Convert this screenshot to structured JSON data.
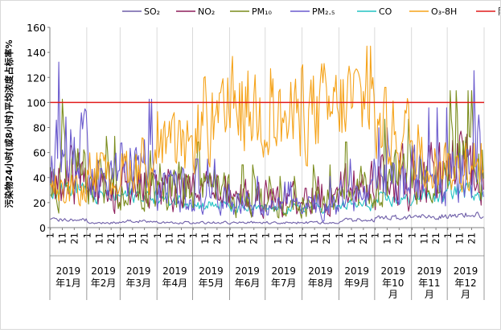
{
  "chart_data": {
    "type": "line",
    "ylabel": "污染物24小时(或8小时)平均浓度占标率%",
    "ylim": [
      0,
      160
    ],
    "yticks": [
      0,
      20,
      40,
      60,
      80,
      100,
      120,
      140,
      160
    ],
    "grid": "vertical lines at month boundaries",
    "legend_position": "top",
    "threshold": {
      "name": "限值",
      "value": 100,
      "color": "#e11b1b"
    },
    "series": [
      {
        "name": "SO₂",
        "color": "#6e5ea8"
      },
      {
        "name": "NO₂",
        "color": "#8e1f5c"
      },
      {
        "name": "PM₁₀",
        "color": "#7a8c1c"
      },
      {
        "name": "PM₂.₅",
        "color": "#6a5acd"
      },
      {
        "name": "CO",
        "color": "#22c3c3"
      },
      {
        "name": "O₃-8H",
        "color": "#f5a31a"
      }
    ],
    "day_tick_labels": [
      "1",
      "11",
      "21"
    ],
    "months": [
      {
        "year": "2019",
        "month": "年1月"
      },
      {
        "year": "2019",
        "month": "年2月"
      },
      {
        "year": "2019",
        "month": "年3月"
      },
      {
        "year": "2019",
        "month": "年4月"
      },
      {
        "year": "2019",
        "month": "年5月"
      },
      {
        "year": "2019",
        "month": "年6月"
      },
      {
        "year": "2019",
        "month": "年7月"
      },
      {
        "year": "2019",
        "month": "年8月"
      },
      {
        "year": "2019",
        "month": "年9月"
      },
      {
        "year": "2019",
        "month": "年10月"
      },
      {
        "year": "2019",
        "month": "年11月"
      },
      {
        "year": "2019",
        "month": "年12月"
      }
    ],
    "month_days": [
      31,
      28,
      31,
      30,
      31,
      30,
      31,
      31,
      30,
      31,
      30,
      31
    ],
    "monthly_level": {
      "SO₂": [
        6,
        4,
        5,
        4,
        4,
        4,
        4,
        4,
        6,
        8,
        9,
        10
      ],
      "NO₂": [
        42,
        28,
        35,
        30,
        28,
        25,
        24,
        26,
        32,
        40,
        42,
        48
      ],
      "PM₁₀": [
        45,
        32,
        40,
        35,
        30,
        22,
        18,
        22,
        30,
        38,
        40,
        48
      ],
      "PM₂.₅": [
        58,
        38,
        45,
        32,
        24,
        18,
        16,
        18,
        24,
        35,
        42,
        55
      ],
      "CO": [
        32,
        25,
        26,
        22,
        18,
        15,
        15,
        16,
        18,
        22,
        25,
        30
      ],
      "O₃-8H": [
        28,
        40,
        48,
        62,
        80,
        95,
        85,
        92,
        100,
        75,
        55,
        45
      ]
    }
  }
}
